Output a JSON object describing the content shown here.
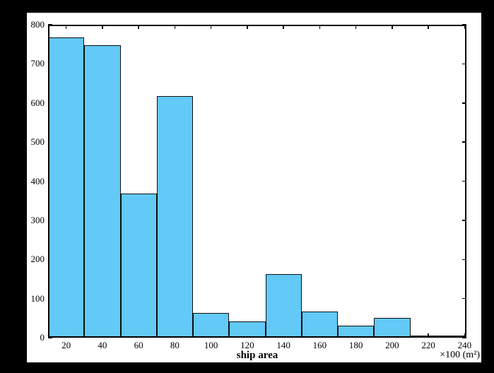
{
  "colors": {
    "page_background": "#000000",
    "figure_background": "#ffffff",
    "bar_fill": "#63C9F7",
    "bar_edge": "#101010",
    "axis": "#000000"
  },
  "chart_data": {
    "type": "bar",
    "subtype": "histogram",
    "title": "",
    "xlabel": "ship area",
    "x_unit_label": "×100 (m²)",
    "ylabel": "",
    "bin_edges": [
      10,
      30,
      50,
      70,
      90,
      110,
      130,
      150,
      170,
      190,
      210,
      230,
      241
    ],
    "bin_centers": [
      20,
      40,
      60,
      80,
      100,
      120,
      140,
      160,
      180,
      200,
      220,
      240
    ],
    "counts": [
      768,
      748,
      368,
      617,
      64,
      42,
      163,
      66,
      31,
      51,
      5,
      5
    ],
    "xlim": [
      10,
      241
    ],
    "ylim": [
      0,
      800
    ],
    "x_ticks": [
      20,
      40,
      60,
      80,
      100,
      120,
      140,
      160,
      180,
      200,
      220,
      240
    ],
    "x_tick_labels": [
      "20",
      "40",
      "60",
      "80",
      "100",
      "120",
      "140",
      "160",
      "180",
      "200",
      "220",
      "240"
    ],
    "y_ticks": [
      0,
      100,
      200,
      300,
      400,
      500,
      600,
      700,
      800
    ],
    "y_tick_labels": [
      "0",
      "100",
      "200",
      "300",
      "400",
      "500",
      "600",
      "700",
      "800"
    ],
    "grid": false,
    "legend": false,
    "box": true,
    "tick_direction": "in"
  }
}
